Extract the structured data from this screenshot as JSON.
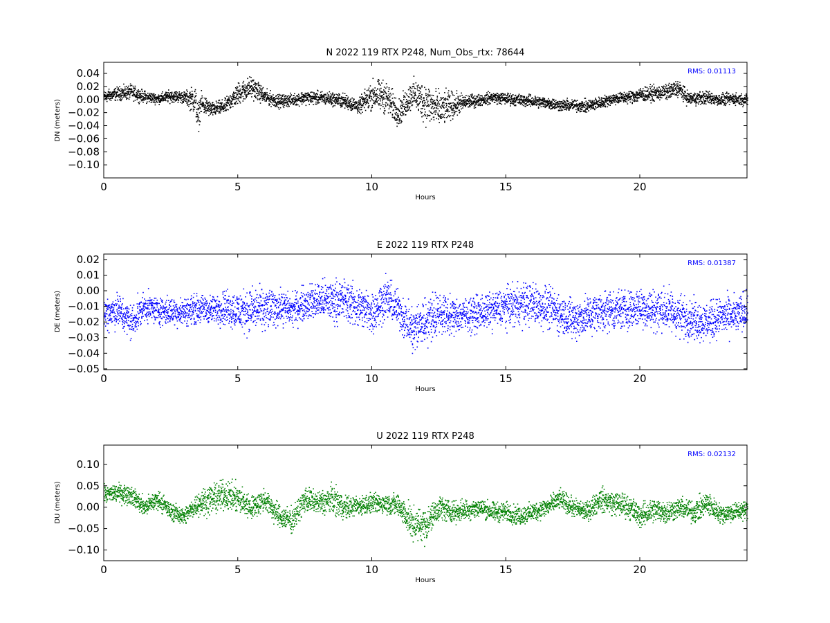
{
  "colors": {
    "background": "#ffffff",
    "axes": "#000000",
    "north": "#000000",
    "east": "#0000ff",
    "up": "#008000",
    "rms_text": "#0000ff"
  },
  "chart_data": [
    {
      "type": "scatter",
      "key": "north",
      "title": "N 2022 119 RTX  P248, Num_Obs_rtx: 78644",
      "xlabel": "Hours",
      "ylabel": "DN (meters)",
      "xlim": [
        0,
        24
      ],
      "ylim": [
        -0.12,
        0.057
      ],
      "xticks": [
        0,
        5,
        10,
        15,
        20
      ],
      "xtick_labels": [
        "0",
        "5",
        "10",
        "15",
        "20"
      ],
      "yticks": [
        -0.1,
        -0.08,
        -0.06,
        -0.04,
        -0.02,
        0.0,
        0.02,
        0.04
      ],
      "ytick_labels": [
        "−0.10",
        "−0.08",
        "−0.06",
        "−0.04",
        "−0.02",
        "0.00",
        "0.02",
        "0.04"
      ],
      "rms_text": "RMS:  0.01113",
      "color": "#000000",
      "grid": false,
      "series": [
        {
          "x": [
            0,
            0.5,
            1,
            1.5,
            2,
            2.5,
            3,
            3.4,
            3.5,
            3.6,
            4,
            4.5,
            5,
            5.5,
            6,
            6.5,
            7,
            7.5,
            8,
            8.5,
            9,
            9.5,
            10,
            10.5,
            11,
            11.5,
            12,
            12.5,
            13,
            13.5,
            14,
            14.5,
            15,
            15.5,
            16,
            16.5,
            17,
            17.5,
            18,
            18.5,
            19,
            19.5,
            20,
            20.5,
            21,
            21.4,
            21.8,
            22.5,
            23,
            23.5,
            24
          ],
          "y": [
            0.005,
            0.01,
            0.012,
            0.005,
            0.002,
            0.006,
            0.004,
            0.0,
            -0.03,
            -0.005,
            -0.015,
            -0.01,
            0.01,
            0.02,
            0.005,
            -0.002,
            0.0,
            0.004,
            0.003,
            0.002,
            -0.002,
            -0.01,
            0.008,
            0.005,
            -0.02,
            0.01,
            -0.005,
            -0.015,
            -0.008,
            -0.003,
            0.0,
            0.004,
            0.002,
            0.0,
            -0.002,
            -0.004,
            -0.008,
            -0.008,
            -0.01,
            -0.004,
            0.002,
            0.004,
            0.008,
            0.01,
            0.012,
            0.018,
            0.002,
            0.004,
            0.0,
            0.002,
            0.0
          ],
          "spread": [
            0.008,
            0.009,
            0.01,
            0.008,
            0.007,
            0.008,
            0.008,
            0.02,
            0.02,
            0.015,
            0.01,
            0.01,
            0.015,
            0.015,
            0.01,
            0.009,
            0.008,
            0.009,
            0.009,
            0.009,
            0.01,
            0.01,
            0.02,
            0.022,
            0.018,
            0.02,
            0.028,
            0.025,
            0.018,
            0.01,
            0.008,
            0.008,
            0.008,
            0.008,
            0.008,
            0.008,
            0.008,
            0.008,
            0.009,
            0.008,
            0.008,
            0.008,
            0.01,
            0.01,
            0.01,
            0.012,
            0.009,
            0.009,
            0.008,
            0.008,
            0.008
          ]
        }
      ]
    },
    {
      "type": "scatter",
      "key": "east",
      "title": "E 2022 119 RTX  P248",
      "xlabel": "Hours",
      "ylabel": "DE (meters)",
      "xlim": [
        0,
        24
      ],
      "ylim": [
        -0.0505,
        0.0235
      ],
      "xticks": [
        0,
        5,
        10,
        15,
        20
      ],
      "xtick_labels": [
        "0",
        "5",
        "10",
        "15",
        "20"
      ],
      "yticks": [
        -0.05,
        -0.04,
        -0.03,
        -0.02,
        -0.01,
        0.0,
        0.01,
        0.02
      ],
      "ytick_labels": [
        "−0.05",
        "−0.04",
        "−0.03",
        "−0.02",
        "−0.01",
        "0.00",
        "0.01",
        "0.02"
      ],
      "rms_text": "RMS:  0.01387",
      "color": "#0000ff",
      "grid": false,
      "series": [
        {
          "x": [
            0,
            0.5,
            1,
            1.5,
            2,
            2.5,
            3,
            3.5,
            4,
            4.5,
            5,
            5.5,
            6,
            6.5,
            7,
            7.5,
            8,
            8.5,
            9,
            9.5,
            10,
            10.5,
            11,
            11.5,
            12,
            12.5,
            13,
            13.5,
            14,
            14.5,
            15,
            15.5,
            16,
            16.5,
            17,
            17.5,
            18,
            18.5,
            19,
            19.5,
            20,
            20.5,
            21,
            21.5,
            22,
            22.5,
            23,
            23.5,
            24
          ],
          "y": [
            -0.014,
            -0.012,
            -0.02,
            -0.01,
            -0.012,
            -0.013,
            -0.013,
            -0.011,
            -0.012,
            -0.01,
            -0.013,
            -0.012,
            -0.012,
            -0.01,
            -0.012,
            -0.008,
            -0.006,
            -0.006,
            -0.006,
            -0.01,
            -0.014,
            -0.004,
            -0.012,
            -0.025,
            -0.018,
            -0.014,
            -0.016,
            -0.015,
            -0.014,
            -0.012,
            -0.01,
            -0.008,
            -0.008,
            -0.01,
            -0.014,
            -0.018,
            -0.016,
            -0.012,
            -0.012,
            -0.012,
            -0.01,
            -0.012,
            -0.012,
            -0.016,
            -0.018,
            -0.02,
            -0.016,
            -0.016,
            -0.012
          ],
          "spread": [
            0.01,
            0.01,
            0.01,
            0.008,
            0.008,
            0.008,
            0.008,
            0.008,
            0.008,
            0.01,
            0.012,
            0.012,
            0.012,
            0.01,
            0.009,
            0.01,
            0.011,
            0.012,
            0.012,
            0.012,
            0.012,
            0.012,
            0.01,
            0.014,
            0.014,
            0.012,
            0.01,
            0.01,
            0.01,
            0.01,
            0.011,
            0.012,
            0.012,
            0.012,
            0.011,
            0.012,
            0.012,
            0.011,
            0.012,
            0.011,
            0.012,
            0.012,
            0.013,
            0.012,
            0.011,
            0.011,
            0.011,
            0.011,
            0.011
          ]
        }
      ]
    },
    {
      "type": "scatter",
      "key": "up",
      "title": "U 2022 119 RTX  P248",
      "xlabel": "Hours",
      "ylabel": "DU (meters)",
      "xlim": [
        0,
        24
      ],
      "ylim": [
        -0.125,
        0.145
      ],
      "xticks": [
        0,
        5,
        10,
        15,
        20
      ],
      "xtick_labels": [
        "0",
        "5",
        "10",
        "15",
        "20"
      ],
      "yticks": [
        -0.1,
        -0.05,
        0.0,
        0.05,
        0.1
      ],
      "ytick_labels": [
        "−0.10",
        "−0.05",
        "0.00",
        "0.05",
        "0.10"
      ],
      "rms_text": "RMS:  0.02132",
      "color": "#008000",
      "grid": false,
      "series": [
        {
          "x": [
            0,
            0.5,
            1,
            1.5,
            2,
            2.5,
            3,
            3.5,
            4,
            4.5,
            5,
            5.5,
            6,
            6.5,
            7,
            7.5,
            8,
            8.5,
            9,
            9.5,
            10,
            10.5,
            11,
            11.5,
            12,
            12.5,
            13,
            13.5,
            14,
            14.5,
            15,
            15.5,
            16,
            16.5,
            17,
            17.5,
            18,
            18.5,
            19,
            19.5,
            20,
            20.5,
            21,
            21.5,
            22,
            22.5,
            23,
            23.5,
            24
          ],
          "y": [
            0.03,
            0.035,
            0.03,
            0.0,
            0.02,
            -0.01,
            -0.02,
            0.01,
            0.02,
            0.03,
            0.02,
            0.0,
            0.02,
            -0.02,
            -0.03,
            0.02,
            0.01,
            0.02,
            0.0,
            0.005,
            0.01,
            0.01,
            0.005,
            -0.04,
            -0.04,
            0.0,
            -0.01,
            -0.005,
            0.0,
            -0.01,
            -0.01,
            -0.02,
            -0.01,
            0.0,
            0.02,
            0.0,
            -0.01,
            0.02,
            0.01,
            0.005,
            -0.02,
            -0.005,
            -0.01,
            0.0,
            -0.01,
            0.01,
            -0.015,
            -0.01,
            -0.005
          ],
          "spread": [
            0.018,
            0.02,
            0.02,
            0.02,
            0.02,
            0.018,
            0.018,
            0.025,
            0.03,
            0.03,
            0.03,
            0.025,
            0.025,
            0.025,
            0.025,
            0.025,
            0.025,
            0.03,
            0.025,
            0.02,
            0.02,
            0.02,
            0.025,
            0.035,
            0.035,
            0.025,
            0.022,
            0.022,
            0.02,
            0.02,
            0.02,
            0.02,
            0.02,
            0.02,
            0.02,
            0.02,
            0.02,
            0.025,
            0.025,
            0.025,
            0.025,
            0.025,
            0.025,
            0.02,
            0.025,
            0.025,
            0.02,
            0.02,
            0.02
          ]
        }
      ]
    }
  ]
}
